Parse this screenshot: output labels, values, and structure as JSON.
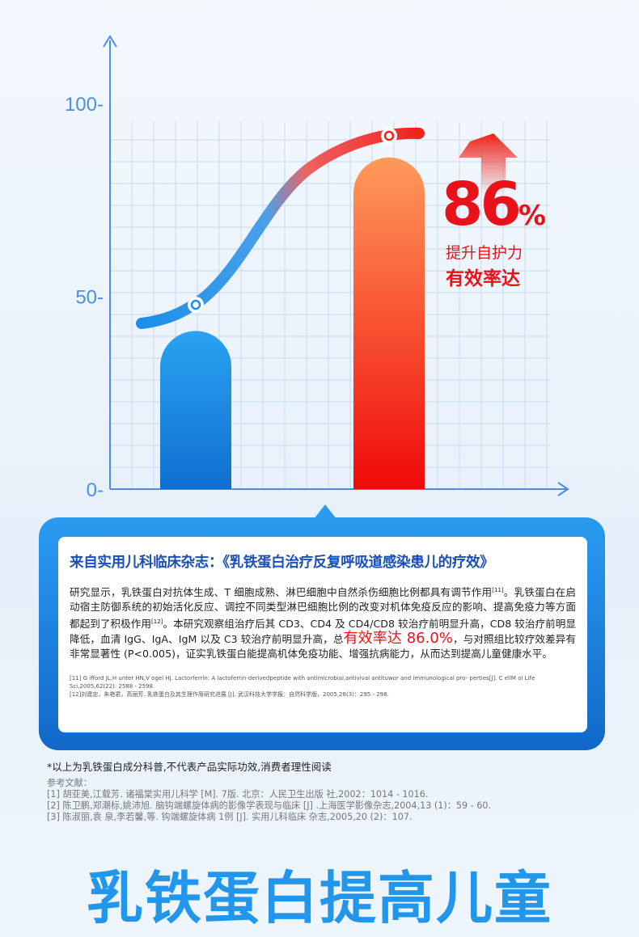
{
  "chart_data": {
    "type": "bar",
    "categories": [
      "",
      ""
    ],
    "values": [
      41,
      86
    ],
    "trend_curve": [
      43,
      93
    ],
    "yticks": [
      0,
      50,
      100
    ],
    "ylim": [
      0,
      100
    ],
    "grid": true,
    "colors": {
      "bar1": "#1a8ee8",
      "bar2": "#f0231a",
      "curve_start": "#1a8ee8",
      "curve_end": "#f0231a"
    },
    "annotation": {
      "value": "86",
      "unit": "%",
      "line1": "提升自护力",
      "line2": "有效率达"
    }
  },
  "study": {
    "title": "来自实用儿科临床杂志：《乳铁蛋白治疗反复呼吸道感染患儿的疗效》",
    "text_a": "研究显示，乳铁蛋白对抗体生成、T 细胞成熟、淋巴细胞中自然杀伤细胞比例都具有调节作用",
    "sup1": "[11]",
    "text_b": "。乳铁蛋白在启动宿主防御系统的初始活化反应、调控不同类型淋巴细胞比例的改变对机体免疫反应的影响、提高免疫力等方面都起到了积极作用",
    "sup2": "[12]",
    "text_c": "。本研究观察组治疗后其 CD3、CD4 及 CD4/CD8 较治疗前明显升高，CD8 较治疗前明显降低，血清 IgG、IgA、IgM 以及 C3 较治疗前明显升高，总",
    "highlight": "有效率达 86.0%",
    "text_d": "，与对照组比较疗效差异有非常显著性 (P<0.005)，证实乳铁蛋白能提高机体免疫功能、增强抗病能力，从而达到提高儿童健康水平。",
    "ref11": "[11] G ifford JL,H unter HN,V ogel HJ. Lactorferrin: A lactoferrin-derivedpeptide with antimicrobial,antivival antituwor and immunological pro- perties[J]. C ellM ol Life Sci,2005,62(22): 2588 - 2598.",
    "ref12": "[12]刘建忠，朱艳君，高丽芳. 乳铁蛋白及其生理作用研究进展 [J]. 武汉科技大学学报：自然科学版，2005,28(3)：295 - 298."
  },
  "disclaimer": "*以上为乳铁蛋白成分科普,不代表产品实际功效,消费者理性阅读",
  "literature": {
    "label": "参考文献：",
    "items": [
      "[1] 胡亚美,江载芳. 诸福棠实用儿科学 [M]. 7版. 北京：人民卫生出版 社,2002：1014 - 1016.",
      "[2] 陈卫鹏,郑潮标,姚沛旭. 脑钩端螺旋体病的影像学表现与临床 [J] .上海医学影像杂志,2004,13 (1)：59 - 60.",
      "[3] 陈淑丽,袁 泉,李若馨,等. 钩端螺旋体病 1例 [J]. 实用儿科临床 杂志,2005,20 (2)：107."
    ]
  },
  "headline": "乳铁蛋白提高儿童"
}
